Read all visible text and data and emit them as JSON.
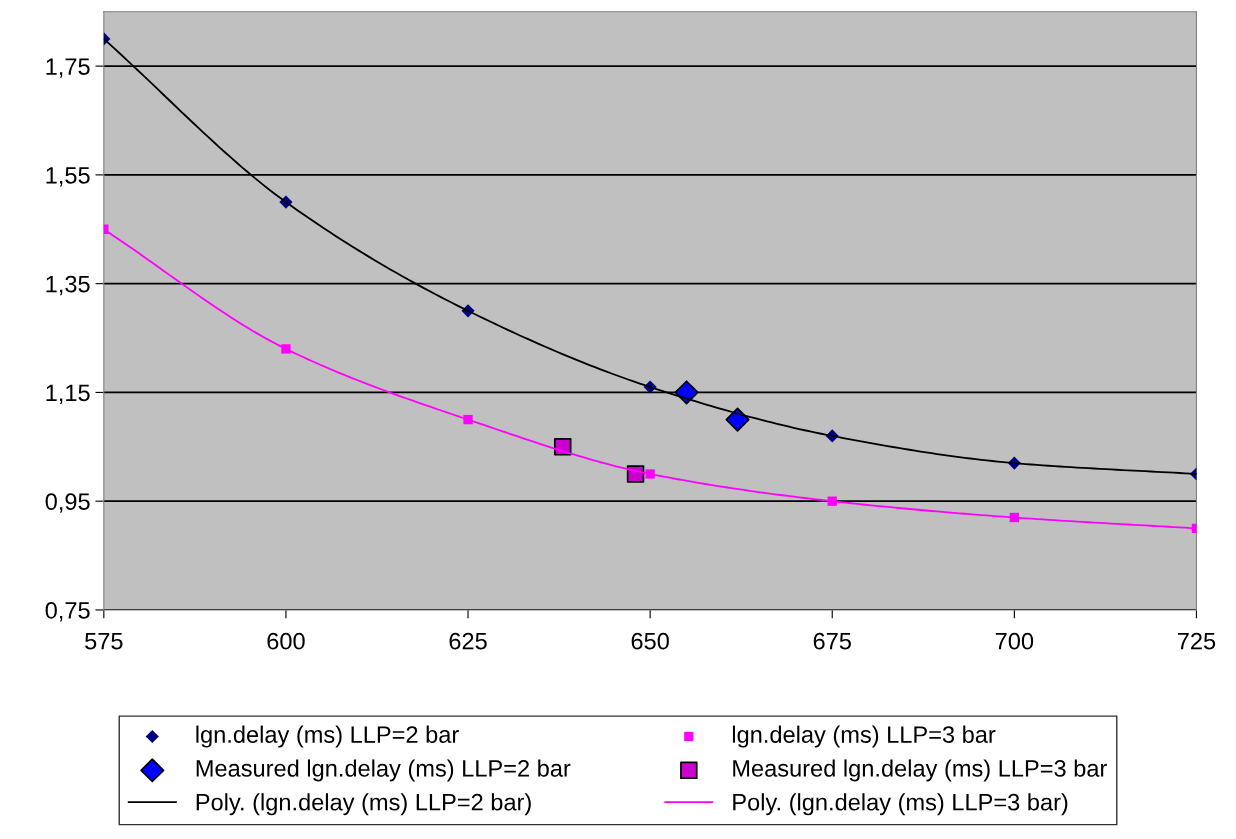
{
  "chart_data": {
    "type": "scatter",
    "x": [
      575,
      600,
      625,
      650,
      675,
      700,
      725
    ],
    "series": [
      {
        "name": "lgn.delay (ms) LLP=2 bar",
        "color": "#000080",
        "marker": "diamond",
        "values": [
          1.8,
          1.5,
          1.3,
          1.16,
          1.07,
          1.02,
          1.0
        ]
      },
      {
        "name": "lgn.delay (ms) LLP=3 bar",
        "color": "#ff00ff",
        "marker": "square",
        "values": [
          1.45,
          1.23,
          1.1,
          1.0,
          0.95,
          0.92,
          0.9
        ]
      },
      {
        "name": "Measured lgn.delay (ms) LLP=2 bar",
        "color": "#0000ff",
        "marker": "diamond",
        "x": [
          655,
          662
        ],
        "values": [
          1.15,
          1.1
        ]
      },
      {
        "name": "Measured lgn.delay (ms) LLP=3 bar",
        "color": "#cc00cc",
        "marker": "square",
        "x": [
          638,
          648
        ],
        "values": [
          1.05,
          1.0
        ]
      },
      {
        "name": "Poly. (lgn.delay (ms) LLP=2 bar)",
        "type": "line",
        "color": "#000000",
        "marker": "none",
        "values": [
          1.8,
          1.5,
          1.3,
          1.16,
          1.07,
          1.02,
          1.0
        ]
      },
      {
        "name": "Poly. (lgn.delay (ms) LLP=3 bar)",
        "type": "line",
        "color": "#ff00ff",
        "marker": "none",
        "values": [
          1.45,
          1.23,
          1.1,
          1.0,
          0.95,
          0.92,
          0.9
        ]
      }
    ],
    "xlim": [
      575,
      725
    ],
    "xticks": [
      575,
      600,
      625,
      650,
      675,
      700,
      725
    ],
    "ylim": [
      0.75,
      1.85
    ],
    "yticks": [
      {
        "value": 0.75,
        "label": "0,75"
      },
      {
        "value": 0.95,
        "label": "0,95"
      },
      {
        "value": 1.15,
        "label": "1,15"
      },
      {
        "value": 1.35,
        "label": "1,35"
      },
      {
        "value": 1.55,
        "label": "1,55"
      },
      {
        "value": 1.75,
        "label": "1,75"
      }
    ],
    "grid": "y",
    "legend": "bottom"
  }
}
